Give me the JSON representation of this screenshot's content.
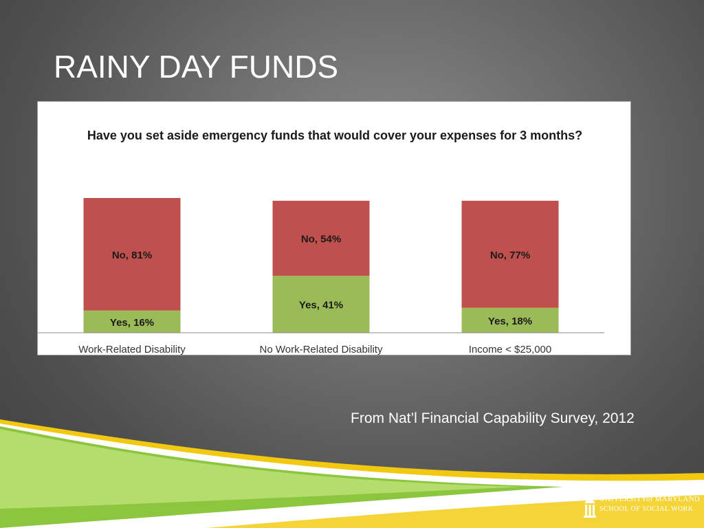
{
  "slide": {
    "title": "RAINY DAY FUNDS",
    "source_note": "From Nat’l Financial Capability Survey, 2012"
  },
  "logo": {
    "line1": "UNIVERSITYof MARYLAND",
    "line2": "SCHOOL OF SOCIAL WORK"
  },
  "colors": {
    "no": "#c0504d",
    "yes": "#9bbb59",
    "swoosh_green": "#8cc63f",
    "swoosh_yellow": "#f2c811"
  },
  "chart_data": {
    "type": "bar",
    "stacked": true,
    "title": "Have you set aside emergency funds that would cover your expenses for 3 months?",
    "categories": [
      "Work-Related Disability",
      "No Work-Related Disability",
      "Income < $25,000"
    ],
    "series": [
      {
        "name": "Yes",
        "values": [
          16,
          41,
          18
        ],
        "labels": [
          "Yes, 16%",
          "Yes, 41%",
          "Yes, 18%"
        ]
      },
      {
        "name": "No",
        "values": [
          81,
          54,
          77
        ],
        "labels": [
          "No, 81%",
          "No, 54%",
          "No, 77%"
        ]
      }
    ],
    "ylim": [
      0,
      97
    ],
    "grid": false,
    "legend": "none"
  }
}
